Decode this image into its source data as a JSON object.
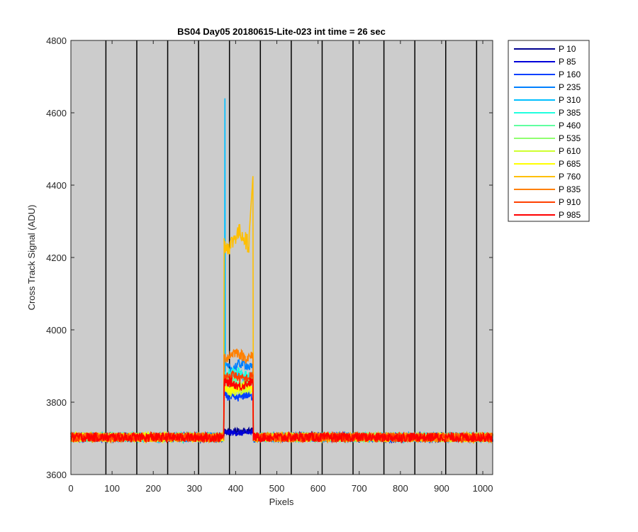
{
  "chart_data": {
    "type": "line",
    "title": "BS04 Day05 20180615-Lite-023 int time = 26 sec",
    "xlabel": "Pixels",
    "ylabel": "Cross Track Signal (ADU)",
    "xlim": [
      0,
      1024
    ],
    "ylim": [
      3600,
      4800
    ],
    "xticks": [
      0,
      100,
      200,
      300,
      400,
      500,
      600,
      700,
      800,
      900,
      1000
    ],
    "yticks": [
      3600,
      3800,
      4000,
      4200,
      4400,
      4600,
      4800
    ],
    "background_color": "#cccccc",
    "vertical_lines_x": [
      85,
      160,
      235,
      310,
      385,
      460,
      535,
      610,
      685,
      760,
      835,
      910,
      985
    ],
    "legend_position": "outside-right-top",
    "baseline_level": 3703,
    "feature_x_range": [
      372,
      442
    ],
    "series": [
      {
        "name": "P 10",
        "color": "#00008f",
        "feature_level": 3720
      },
      {
        "name": "P 85",
        "color": "#0000d9",
        "feature_level": 3715
      },
      {
        "name": "P 160",
        "color": "#0040ff",
        "feature_level": 3815
      },
      {
        "name": "P 235",
        "color": "#0080ff",
        "feature_level": 3900
      },
      {
        "name": "P 310",
        "color": "#00bfff",
        "feature_level": 3870,
        "spike": {
          "x": 374,
          "y": 4640
        }
      },
      {
        "name": "P 385",
        "color": "#20ffdf",
        "feature_level": 3880
      },
      {
        "name": "P 460",
        "color": "#60ffa0",
        "feature_level": 3860
      },
      {
        "name": "P 535",
        "color": "#90ff70",
        "feature_level": 3850
      },
      {
        "name": "P 610",
        "color": "#cfff30",
        "feature_level": 3830
      },
      {
        "name": "P 685",
        "color": "#ffff00",
        "feature_level": 3840
      },
      {
        "name": "P 760",
        "color": "#ffbf00",
        "feature_level": 4250,
        "peak": {
          "x": 440,
          "y": 4425
        }
      },
      {
        "name": "P 835",
        "color": "#ff8000",
        "feature_level": 3930
      },
      {
        "name": "P 910",
        "color": "#ff4000",
        "feature_level": 3870
      },
      {
        "name": "P 985",
        "color": "#ff0000",
        "feature_level": 3850
      }
    ]
  }
}
